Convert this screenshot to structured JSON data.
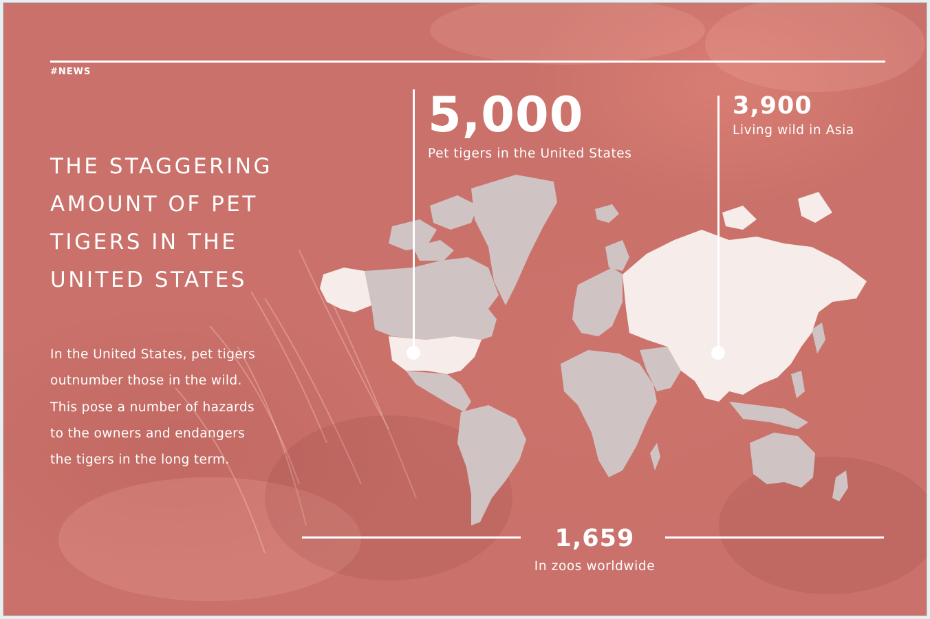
{
  "tag": "#NEWS",
  "headline": [
    "THE STAGGERING",
    "AMOUNT OF PET",
    "TIGERS IN THE",
    "UNITED STATES"
  ],
  "body": [
    "In the United States, pet tigers",
    "outnumber those in the wild.",
    "This pose a number of hazards",
    "to the owners and endangers",
    "the tigers in the long term."
  ],
  "stats": {
    "us": {
      "value": "5,000",
      "label": "Pet tigers in the United States"
    },
    "asia": {
      "value": "3,900",
      "label": "Living wild in Asia"
    },
    "zoos": {
      "value": "1,659",
      "label": "In zoos worldwide"
    }
  },
  "colors": {
    "background": "#c9716a",
    "map_land": "#cfc4c3",
    "map_highlight": "#f6ecea",
    "text": "#ffffff"
  }
}
